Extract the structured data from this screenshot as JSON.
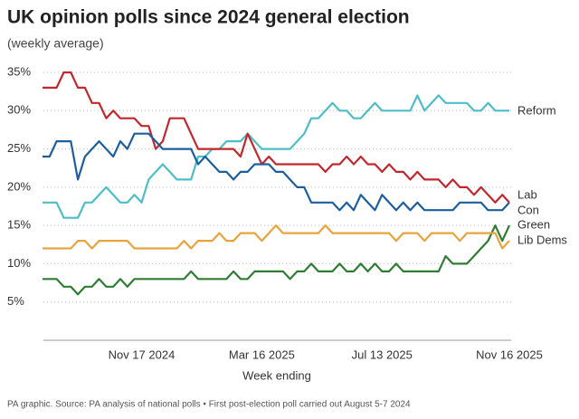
{
  "chart_data": {
    "type": "line",
    "title": "UK opinion polls since 2024 general election",
    "subtitle": "(weekly average)",
    "x_label": "Week ending",
    "footnote": "PA graphic. Source: PA analysis of national polls • First post-election poll carried out August 5-7 2024",
    "categories": [
      null,
      null,
      null,
      null,
      null,
      null,
      null,
      null,
      null,
      null,
      null,
      null,
      null,
      null,
      "Nov 17 2024",
      null,
      null,
      null,
      null,
      null,
      null,
      null,
      null,
      null,
      null,
      null,
      null,
      null,
      null,
      null,
      null,
      "Mar 16 2025",
      null,
      null,
      null,
      null,
      null,
      null,
      null,
      null,
      null,
      null,
      null,
      null,
      null,
      null,
      null,
      null,
      "Jul 13 2025",
      null,
      null,
      null,
      null,
      null,
      null,
      null,
      null,
      null,
      null,
      null,
      null,
      null,
      null,
      null,
      null,
      null,
      "Nov 16 2025"
    ],
    "series": [
      {
        "name": "Reform",
        "color": "#4dbdc6",
        "values": [
          18,
          18,
          18,
          16,
          16,
          16,
          18,
          18,
          19,
          20,
          19,
          18,
          18,
          19,
          18,
          21,
          22,
          23,
          22,
          21,
          21,
          21,
          24,
          24,
          25,
          25,
          26,
          26,
          26,
          27,
          26,
          25,
          25,
          25,
          25,
          25,
          26,
          27,
          29,
          29,
          30,
          31,
          30,
          30,
          29,
          29,
          30,
          31,
          30,
          30,
          30,
          30,
          30,
          32,
          30,
          31,
          32,
          31,
          31,
          31,
          31,
          30,
          30,
          31,
          30,
          30,
          30
        ]
      },
      {
        "name": "Lab",
        "color": "#c1272d",
        "values": [
          33,
          33,
          33,
          35,
          35,
          33,
          33,
          31,
          31,
          29,
          30,
          29,
          29,
          29,
          28,
          28,
          25,
          26,
          29,
          29,
          29,
          27,
          25,
          25,
          25,
          25,
          25,
          25,
          24,
          27,
          25,
          23,
          24,
          23,
          23,
          23,
          23,
          23,
          23,
          23,
          22,
          23,
          23,
          24,
          23,
          24,
          23,
          23,
          22,
          23,
          22,
          22,
          21,
          22,
          21,
          21,
          21,
          20,
          21,
          20,
          20,
          19,
          20,
          19,
          18,
          19,
          18
        ]
      },
      {
        "name": "Con",
        "color": "#1d5f9c",
        "values": [
          24,
          24,
          26,
          26,
          26,
          21,
          24,
          25,
          26,
          25,
          24,
          26,
          25,
          27,
          27,
          27,
          26,
          25,
          25,
          25,
          25,
          25,
          23,
          24,
          23,
          22,
          22,
          21,
          22,
          22,
          23,
          23,
          23,
          22,
          22,
          21,
          20,
          20,
          18,
          18,
          18,
          18,
          17,
          18,
          17,
          19,
          18,
          17,
          19,
          18,
          17,
          18,
          17,
          18,
          17,
          17,
          17,
          17,
          17,
          18,
          18,
          18,
          18,
          17,
          17,
          17,
          18
        ]
      },
      {
        "name": "Green",
        "color": "#2e7d32",
        "values": [
          8,
          8,
          8,
          7,
          7,
          6,
          7,
          7,
          8,
          7,
          7,
          8,
          7,
          8,
          8,
          8,
          8,
          8,
          8,
          8,
          8,
          9,
          8,
          8,
          8,
          8,
          8,
          9,
          8,
          8,
          9,
          9,
          9,
          9,
          9,
          8,
          9,
          9,
          10,
          9,
          9,
          9,
          10,
          9,
          9,
          10,
          9,
          10,
          9,
          9,
          10,
          9,
          9,
          9,
          9,
          9,
          9,
          11,
          10,
          10,
          10,
          11,
          12,
          13,
          15,
          13,
          15
        ]
      },
      {
        "name": "Lib Dems",
        "color": "#e8a33d",
        "values": [
          12,
          12,
          12,
          12,
          12,
          13,
          13,
          12,
          13,
          13,
          13,
          13,
          13,
          12,
          12,
          12,
          12,
          12,
          12,
          12,
          13,
          12,
          13,
          13,
          13,
          14,
          13,
          13,
          14,
          14,
          14,
          13,
          14,
          15,
          14,
          14,
          14,
          14,
          14,
          14,
          15,
          14,
          14,
          14,
          14,
          14,
          14,
          14,
          14,
          14,
          13,
          14,
          14,
          14,
          13,
          14,
          14,
          14,
          14,
          13,
          14,
          14,
          14,
          14,
          14,
          12,
          13
        ]
      }
    ],
    "ylim": [
      0,
      35
    ],
    "yticks": [
      {
        "value": 5,
        "label": "5%"
      },
      {
        "value": 10,
        "label": "10%"
      },
      {
        "value": 15,
        "label": "15%"
      },
      {
        "value": 20,
        "label": "20%"
      },
      {
        "value": 25,
        "label": "25%"
      },
      {
        "value": 30,
        "label": "30%"
      },
      {
        "value": 35,
        "label": "35%"
      }
    ],
    "grid": true
  }
}
